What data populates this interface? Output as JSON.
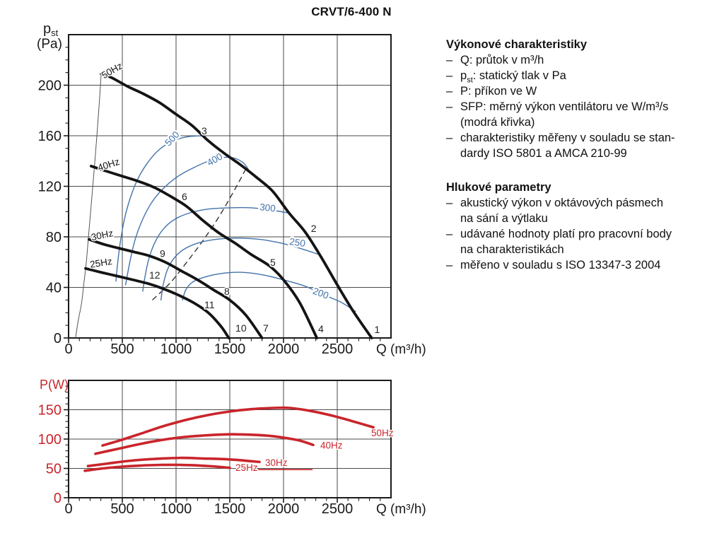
{
  "title": "CRVT/6-400 N",
  "colors": {
    "axis": "#1a1a1a",
    "grid": "#4a4a4a",
    "text": "#1a1a1a",
    "fan_curve": "#141414",
    "sfp_blue": "#4273aa",
    "power_red": "#c9252c",
    "envelope": "#555555",
    "dashed": "#333333"
  },
  "info_panel": {
    "bullet": "–",
    "sections": [
      {
        "heading": "Výkonové charakteristiky",
        "items": [
          {
            "lines": [
              "Q: průtok v m³/h"
            ]
          },
          {
            "prefix": "p",
            "sub": "st",
            "rest": ": statický tlak v Pa"
          },
          {
            "lines": [
              "P: příkon ve W"
            ]
          },
          {
            "lines": [
              "SFP: měrný výkon ventilátoru ve W/m³/s",
              "(modrá křivka)"
            ]
          },
          {
            "lines": [
              "charakteristiky měřeny v souladu se stan-",
              "dardy ISO 5801 a AMCA 210-99"
            ]
          }
        ]
      },
      {
        "heading": "Hlukové parametry",
        "items": [
          {
            "lines": [
              "akustický výkon v oktávových pásmech",
              "na sání a výtlaku"
            ]
          },
          {
            "lines": [
              "udávané hodnoty platí pro pracovní body",
              "na charakteristikách"
            ]
          },
          {
            "lines": [
              "měřeno v souladu s ISO 13347-3 2004"
            ]
          }
        ]
      }
    ]
  },
  "chart_data": [
    {
      "type": "line",
      "name": "static-pressure-chart",
      "xlabel": "Q (m³/h)",
      "ylabel_main": "p",
      "ylabel_sub": "st",
      "ylabel_unit": "(Pa)",
      "xlim": [
        0,
        3000
      ],
      "ylim": [
        0,
        240
      ],
      "xticks": [
        0,
        500,
        1000,
        1500,
        2000,
        2500
      ],
      "yticks": [
        0,
        40,
        80,
        120,
        160,
        200
      ],
      "xmajor": 500,
      "xminor": 100,
      "ymajor": 40,
      "yminor": 10,
      "grid": "major",
      "fan_curves": [
        {
          "name": "50Hz",
          "points": [
            [
              303,
              209
            ],
            [
              400,
              206
            ],
            [
              550,
              199
            ],
            [
              700,
              193
            ],
            [
              850,
              186
            ],
            [
              1000,
              177
            ],
            [
              1150,
              168
            ],
            [
              1300,
              156
            ],
            [
              1450,
              146
            ],
            [
              1600,
              137
            ],
            [
              1750,
              127
            ],
            [
              1900,
              116
            ],
            [
              2050,
              99
            ],
            [
              2200,
              84
            ],
            [
              2350,
              64
            ],
            [
              2500,
              42
            ],
            [
              2650,
              21
            ],
            [
              2820,
              0
            ]
          ],
          "label": {
            "text": "50Hz",
            "q": 329,
            "pa": 205,
            "angle": -30
          }
        },
        {
          "name": "40Hz",
          "points": [
            [
              210,
              136
            ],
            [
              350,
              132
            ],
            [
              500,
              128
            ],
            [
              650,
              124
            ],
            [
              800,
              119
            ],
            [
              950,
              112
            ],
            [
              1100,
              104
            ],
            [
              1250,
              93
            ],
            [
              1400,
              83
            ],
            [
              1550,
              75
            ],
            [
              1700,
              66
            ],
            [
              1870,
              57
            ],
            [
              2000,
              46
            ],
            [
              2150,
              28
            ],
            [
              2310,
              0
            ]
          ],
          "label": {
            "text": "40Hz",
            "q": 283,
            "pa": 132,
            "angle": -18
          }
        },
        {
          "name": "30Hz",
          "points": [
            [
              190,
              78
            ],
            [
              330,
              74
            ],
            [
              470,
              71
            ],
            [
              610,
              68
            ],
            [
              750,
              65
            ],
            [
              900,
              60
            ],
            [
              1050,
              53
            ],
            [
              1200,
              46
            ],
            [
              1350,
              38
            ],
            [
              1500,
              30
            ],
            [
              1650,
              18
            ],
            [
              1800,
              0
            ]
          ],
          "label": {
            "text": "30Hz",
            "q": 217,
            "pa": 77,
            "angle": -12
          }
        },
        {
          "name": "25Hz",
          "points": [
            [
              158,
              55
            ],
            [
              300,
              52
            ],
            [
              450,
              49
            ],
            [
              600,
              46
            ],
            [
              740,
              43
            ],
            [
              880,
              39
            ],
            [
              1020,
              34
            ],
            [
              1160,
              28
            ],
            [
              1300,
              20
            ],
            [
              1420,
              9
            ],
            [
              1490,
              0
            ]
          ],
          "label": {
            "text": "25Hz",
            "q": 204,
            "pa": 55.5,
            "angle": -9
          }
        }
      ],
      "sfp_curves": [
        {
          "name": "500",
          "points": [
            [
              440,
              45
            ],
            [
              455,
              58
            ],
            [
              480,
              75
            ],
            [
              520,
              94
            ],
            [
              575,
              111
            ],
            [
              645,
              126
            ],
            [
              730,
              138
            ],
            [
              830,
              148
            ],
            [
              950,
              155
            ],
            [
              1090,
              159
            ],
            [
              1250,
              160
            ]
          ],
          "label": {
            "text": "500",
            "q": 985,
            "pa": 156,
            "angle": -47
          }
        },
        {
          "name": "400",
          "points": [
            [
              530,
              42
            ],
            [
              570,
              60
            ],
            [
              620,
              78
            ],
            [
              690,
              94
            ],
            [
              780,
              108
            ],
            [
              890,
              119
            ],
            [
              1020,
              128
            ],
            [
              1170,
              135
            ],
            [
              1340,
              141
            ],
            [
              1500,
              143
            ],
            [
              1620,
              139
            ],
            [
              1690,
              131
            ]
          ],
          "label": {
            "text": "400",
            "q": 1375,
            "pa": 139,
            "angle": -30
          }
        },
        {
          "name": "300",
          "points": [
            [
              690,
              37
            ],
            [
              710,
              48
            ],
            [
              745,
              62
            ],
            [
              800,
              75
            ],
            [
              880,
              86
            ],
            [
              990,
              94
            ],
            [
              1130,
              99
            ],
            [
              1300,
              102
            ],
            [
              1500,
              103
            ],
            [
              1700,
              103
            ],
            [
              1900,
              101
            ],
            [
              2040,
              99
            ]
          ],
          "label": {
            "text": "300",
            "q": 1849,
            "pa": 100.5,
            "angle": 6
          }
        },
        {
          "name": "250",
          "points": [
            [
              860,
              30
            ],
            [
              880,
              42
            ],
            [
              920,
              54
            ],
            [
              980,
              63
            ],
            [
              1070,
              70
            ],
            [
              1200,
              75
            ],
            [
              1370,
              78
            ],
            [
              1570,
              79
            ],
            [
              1780,
              78
            ],
            [
              1980,
              75
            ],
            [
              2150,
              71
            ],
            [
              2330,
              66
            ]
          ],
          "label": {
            "text": "250",
            "q": 2125,
            "pa": 73,
            "angle": 8
          }
        },
        {
          "name": "200",
          "points": [
            [
              1060,
              30
            ],
            [
              1090,
              38
            ],
            [
              1150,
              44
            ],
            [
              1260,
              48
            ],
            [
              1420,
              51
            ],
            [
              1600,
              52
            ],
            [
              1800,
              50
            ],
            [
              2000,
              46
            ],
            [
              2200,
              41
            ],
            [
              2380,
              34
            ],
            [
              2540,
              28
            ],
            [
              2670,
              21
            ]
          ],
          "label": {
            "text": "200",
            "q": 2336,
            "pa": 33,
            "angle": 21
          }
        }
      ],
      "envelope": [
        [
          65,
          0
        ],
        [
          90,
          14
        ],
        [
          120,
          27
        ],
        [
          145,
          45
        ],
        [
          165,
          60
        ],
        [
          185,
          80
        ],
        [
          205,
          100
        ],
        [
          225,
          120
        ],
        [
          245,
          140
        ],
        [
          265,
          162
        ],
        [
          285,
          185
        ],
        [
          303,
          209
        ]
      ],
      "system_curve": {
        "dash": true,
        "points": [
          [
            780,
            30
          ],
          [
            950,
            44
          ],
          [
            1100,
            60
          ],
          [
            1250,
            77
          ],
          [
            1400,
            96
          ],
          [
            1550,
            118
          ],
          [
            1645,
            133
          ]
        ]
      },
      "point_labels": [
        {
          "n": "1",
          "q": 2845,
          "pa": 4
        },
        {
          "n": "2",
          "q": 2255,
          "pa": 84
        },
        {
          "n": "3",
          "q": 1237,
          "pa": 161
        },
        {
          "n": "4",
          "q": 2322,
          "pa": 4.5
        },
        {
          "n": "5",
          "q": 1875,
          "pa": 57
        },
        {
          "n": "6",
          "q": 1053,
          "pa": 109
        },
        {
          "n": "7",
          "q": 1809,
          "pa": 5
        },
        {
          "n": "8",
          "q": 1447,
          "pa": 34
        },
        {
          "n": "9",
          "q": 849,
          "pa": 64
        },
        {
          "n": "10",
          "q": 1553,
          "pa": 5
        },
        {
          "n": "11",
          "q": 1263,
          "pa": 23.5
        },
        {
          "n": "12",
          "q": 750,
          "pa": 47
        }
      ]
    },
    {
      "type": "line",
      "name": "power-chart",
      "xlabel": "Q (m³/h)",
      "ylabel": "P(W)",
      "xlim": [
        0,
        3000
      ],
      "ylim": [
        0,
        200
      ],
      "xticks": [
        0,
        500,
        1000,
        1500,
        2000,
        2500
      ],
      "yticks": [
        0,
        50,
        100,
        150
      ],
      "xmajor": 500,
      "xminor": 100,
      "ymajor": 50,
      "yminor": 10,
      "grid": "major",
      "power_curves": [
        {
          "name": "50Hz",
          "points": [
            [
              316,
              89
            ],
            [
              500,
              99
            ],
            [
              700,
              111
            ],
            [
              900,
              123
            ],
            [
              1100,
              133
            ],
            [
              1300,
              141
            ],
            [
              1500,
              147
            ],
            [
              1700,
              151
            ],
            [
              1900,
              153
            ],
            [
              2060,
              153
            ],
            [
              2250,
              148
            ],
            [
              2450,
              140
            ],
            [
              2650,
              130
            ],
            [
              2836,
              120
            ]
          ],
          "label": {
            "text": "50Hz",
            "q": 2816,
            "p": 105
          }
        },
        {
          "name": "40Hz",
          "points": [
            [
              250,
              75
            ],
            [
              450,
              83
            ],
            [
              650,
              91
            ],
            [
              850,
              98
            ],
            [
              1050,
              103
            ],
            [
              1250,
              106
            ],
            [
              1450,
              108
            ],
            [
              1600,
              108
            ],
            [
              1750,
              107
            ],
            [
              1900,
              105
            ],
            [
              2050,
              101
            ],
            [
              2160,
              97
            ],
            [
              2276,
              90
            ]
          ],
          "label": {
            "text": "40Hz",
            "q": 2342,
            "p": 84
          }
        },
        {
          "name": "30Hz",
          "points": [
            [
              180,
              54
            ],
            [
              350,
              58
            ],
            [
              520,
              62
            ],
            [
              700,
              65
            ],
            [
              880,
              67
            ],
            [
              1060,
              68
            ],
            [
              1240,
              67
            ],
            [
              1420,
              66
            ],
            [
              1600,
              64
            ],
            [
              1776,
              61
            ]
          ],
          "label": {
            "text": "30Hz",
            "q": 1829,
            "p": 54
          }
        },
        {
          "name": "25Hz",
          "points": [
            [
              151,
              46
            ],
            [
              320,
              50
            ],
            [
              500,
              53
            ],
            [
              680,
              55
            ],
            [
              860,
              56
            ],
            [
              1040,
              56
            ],
            [
              1220,
              55
            ],
            [
              1380,
              53
            ],
            [
              1500,
              51
            ]
          ],
          "label": {
            "text": "25Hz",
            "q": 1553,
            "p": 46
          },
          "trail": [
            [
              1750,
              48
            ],
            [
              2270,
              48
            ]
          ]
        }
      ]
    }
  ]
}
